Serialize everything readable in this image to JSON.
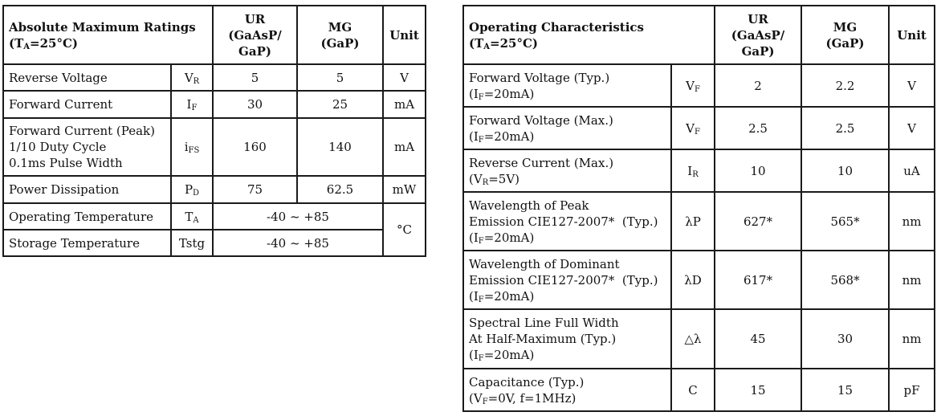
{
  "abs_max": {
    "title": "Absolute Maximum Ratings",
    "condition": {
      "pre": "(T",
      "sub": "A",
      "post": "=25°C)"
    },
    "col_ur": [
      "UR",
      "(GaAsP/",
      "GaP)"
    ],
    "col_mg": [
      "MG",
      "(GaP)"
    ],
    "col_unit": "Unit",
    "rows": [
      {
        "param": [
          "Reverse Voltage"
        ],
        "sym": {
          "main": "V",
          "sub": "R"
        },
        "ur": "5",
        "mg": "5",
        "unit": "V"
      },
      {
        "param": [
          "Forward Current"
        ],
        "sym": {
          "main": "I",
          "sub": "F"
        },
        "ur": "30",
        "mg": "25",
        "unit": "mA"
      },
      {
        "param": [
          "Forward Current (Peak)",
          "1/10 Duty Cycle",
          "0.1ms Pulse Width"
        ],
        "sym": {
          "main": "i",
          "sub": "FS"
        },
        "ur": "160",
        "mg": "140",
        "unit": "mA"
      },
      {
        "param": [
          "Power Dissipation"
        ],
        "sym": {
          "main": "P",
          "sub": "D"
        },
        "ur": "75",
        "mg": "62.5",
        "unit": "mW"
      },
      {
        "param": [
          "Operating Temperature"
        ],
        "sym": {
          "main": "T",
          "sub": "A"
        },
        "span_value": "-40 ~ +85",
        "unit": "°C"
      },
      {
        "param": [
          "Storage Temperature"
        ],
        "sym": {
          "main": "Tstg",
          "sub": ""
        },
        "span_value": "-40 ~ +85"
      }
    ]
  },
  "op_char": {
    "title": "Operating Characteristics",
    "condition": {
      "pre": "(T",
      "sub": "A",
      "post": "=25°C)"
    },
    "col_ur": [
      "UR",
      "(GaAsP/",
      "GaP)"
    ],
    "col_mg": [
      "MG",
      "(GaP)"
    ],
    "col_unit": "Unit",
    "rows": [
      {
        "param": [
          "Forward Voltage (Typ.)"
        ],
        "cond": {
          "pre": "(I",
          "sub": "F",
          "post": "=20mA)"
        },
        "sym": {
          "main": "V",
          "sub": "F"
        },
        "ur": "2",
        "mg": "2.2",
        "unit": "V"
      },
      {
        "param": [
          "Forward Voltage (Max.)"
        ],
        "cond": {
          "pre": "(I",
          "sub": "F",
          "post": "=20mA)"
        },
        "sym": {
          "main": "V",
          "sub": "F"
        },
        "ur": "2.5",
        "mg": "2.5",
        "unit": "V"
      },
      {
        "param": [
          "Reverse Current (Max.)"
        ],
        "cond": {
          "pre": "(V",
          "sub": "R",
          "post": "=5V)"
        },
        "sym": {
          "main": "I",
          "sub": "R"
        },
        "ur": "10",
        "mg": "10",
        "unit": "uA"
      },
      {
        "param": [
          "Wavelength of Peak",
          "Emission CIE127-2007*  (Typ.)"
        ],
        "cond": {
          "pre": "(I",
          "sub": "F",
          "post": "=20mA)"
        },
        "sym": {
          "main": "λP",
          "sub": ""
        },
        "ur": "627*",
        "mg": "565*",
        "unit": "nm"
      },
      {
        "param": [
          "Wavelength of Dominant",
          "Emission CIE127-2007*  (Typ.)"
        ],
        "cond": {
          "pre": "(I",
          "sub": "F",
          "post": "=20mA)"
        },
        "sym": {
          "main": "λD",
          "sub": ""
        },
        "ur": "617*",
        "mg": "568*",
        "unit": "nm"
      },
      {
        "param": [
          "Spectral Line Full Width",
          "At Half-Maximum (Typ.)"
        ],
        "cond": {
          "pre": "(I",
          "sub": "F",
          "post": "=20mA)"
        },
        "sym": {
          "main": "△λ",
          "sub": ""
        },
        "ur": "45",
        "mg": "30",
        "unit": "nm"
      },
      {
        "param": [
          "Capacitance (Typ.)"
        ],
        "cond": {
          "pre": "(V",
          "sub": "F",
          "post": "=0V, f=1MHz)"
        },
        "sym": {
          "main": "C",
          "sub": ""
        },
        "ur": "15",
        "mg": "15",
        "unit": "pF"
      }
    ]
  }
}
